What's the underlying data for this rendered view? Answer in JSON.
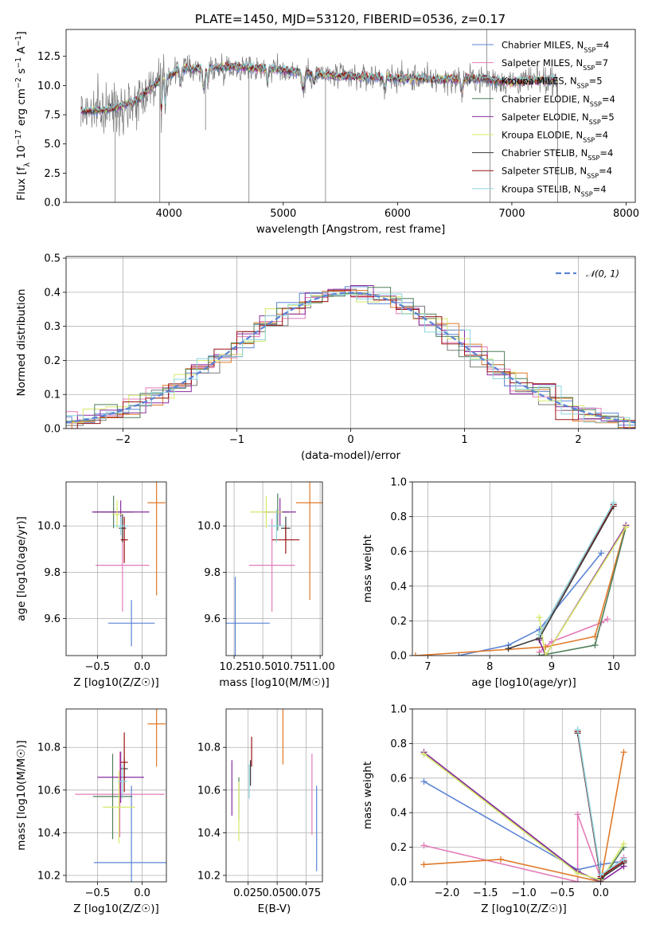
{
  "figure": {
    "title": "PLATE=1450, MJD=53120, FIBERID=0536, z=0.17"
  },
  "series_colors": [
    "#5b84d6",
    "#e47bb8",
    "#7a7a7a",
    "#e07a2a",
    "#8a2aa0",
    "#d6e86a",
    "#4f7f5a",
    "#9a1010",
    "#8ed6df"
  ],
  "chart_data": [
    {
      "id": "spectrum",
      "type": "line",
      "xlabel": "wavelength [Angstrom, rest frame]",
      "ylabel": "Flux [f_λ 10^-17 erg cm^-2 s^-1 A^-1]",
      "xlim": [
        3100,
        8080
      ],
      "ylim": [
        0,
        14.8
      ],
      "xticks": [
        4000,
        5000,
        6000,
        7000,
        8000
      ],
      "yticks": [
        0.0,
        2.5,
        5.0,
        7.5,
        10.0,
        12.5
      ],
      "grid": false,
      "legend": "right",
      "series": [
        {
          "name": "Chabrier MILES, N_SSP=4",
          "legend": "Chabrier MILES, N",
          "sub": "SSP",
          "tail": "=4",
          "color": "#5b84d6"
        },
        {
          "name": "Salpeter MILES, N_SSP=7",
          "legend": "Salpeter MILES, N",
          "sub": "SSP",
          "tail": "=7",
          "color": "#e47bb8"
        },
        {
          "name": "Kroupa MILES, N_SSP=5",
          "legend": "Kroupa MILES, N",
          "sub": "SSP",
          "tail": "=5",
          "color": "#7a7a7a"
        },
        {
          "name": "Chabrier ELODIE, N_SSP=4",
          "legend": "Chabrier ELODIE, N",
          "sub": "SSP",
          "tail": "=4",
          "color": "#4f7f5a"
        },
        {
          "name": "Salpeter ELODIE, N_SSP=5",
          "legend": "Salpeter ELODIE, N",
          "sub": "SSP",
          "tail": "=5",
          "color": "#8a2aa0"
        },
        {
          "name": "Kroupa ELODIE, N_SSP=4",
          "legend": "Kroupa ELODIE, N",
          "sub": "SSP",
          "tail": "=4",
          "color": "#d6e86a"
        },
        {
          "name": "Chabrier STELIB, N_SSP=4",
          "legend": "Chabrier STELIB, N",
          "sub": "SSP",
          "tail": "=4",
          "color": "#3a3a3a"
        },
        {
          "name": "Salpeter STELIB, N_SSP=4",
          "legend": "Salpeter STELIB, N",
          "sub": "SSP",
          "tail": "=4",
          "color": "#9a1010"
        },
        {
          "name": "Kroupa STELIB, N_SSP=4",
          "legend": "Kroupa STELIB, N",
          "sub": "SSP",
          "tail": "=4",
          "color": "#8ed6df"
        }
      ],
      "continuum": [
        [
          3200,
          7.8
        ],
        [
          3450,
          7.9
        ],
        [
          3700,
          8.6
        ],
        [
          3900,
          10.3
        ],
        [
          4100,
          11.4
        ],
        [
          4300,
          11.5
        ],
        [
          4600,
          11.6
        ],
        [
          4900,
          11.4
        ],
        [
          5200,
          11.1
        ],
        [
          5500,
          10.8
        ],
        [
          5800,
          10.7
        ],
        [
          6100,
          10.6
        ],
        [
          6400,
          10.5
        ],
        [
          6700,
          10.6
        ],
        [
          7000,
          10.3
        ],
        [
          7400,
          10.5
        ]
      ]
    },
    {
      "id": "residuals",
      "type": "line",
      "xlabel": "(data-model)/error",
      "ylabel": "Normed distribution",
      "xlim": [
        -2.5,
        2.5
      ],
      "ylim": [
        0,
        0.505
      ],
      "xticks": [
        -2,
        -1,
        0,
        1,
        2
      ],
      "yticks": [
        0.0,
        0.1,
        0.2,
        0.3,
        0.4,
        0.5
      ],
      "grid": true,
      "legend": "top-right",
      "reference": {
        "name": "N(0,1)",
        "legend": "𝒩(0, 1)",
        "color": "#5b84d6",
        "style": "dashed"
      }
    },
    {
      "id": "age_vs_z",
      "type": "scatter",
      "xlabel": "Z [log10(Z/Z☉)]",
      "ylabel": "age [log10(age/yr)]",
      "xlim": [
        -0.85,
        0.27
      ],
      "ylim": [
        9.44,
        10.19
      ],
      "xticks": [
        -0.5,
        0.0
      ],
      "yticks": [
        9.6,
        9.8,
        10.0
      ],
      "grid": true,
      "points": [
        {
          "x": -0.12,
          "y": 9.58,
          "xerr": 0.26,
          "yerr": 0.1,
          "color": "#5b84d6"
        },
        {
          "x": -0.22,
          "y": 9.83,
          "xerr": 0.3,
          "yerr": 0.2,
          "color": "#e47bb8"
        },
        {
          "x": 0.16,
          "y": 10.1,
          "xerr": 0.1,
          "yerr": 0.4,
          "color": "#e07a2a"
        },
        {
          "x": -0.32,
          "y": 10.06,
          "xerr": 0.22,
          "yerr": 0.07,
          "color": "#4f7f5a"
        },
        {
          "x": -0.24,
          "y": 10.06,
          "xerr": 0.32,
          "yerr": 0.05,
          "color": "#8a2aa0"
        },
        {
          "x": -0.28,
          "y": 10.05,
          "xerr": 0.06,
          "yerr": 0.06,
          "color": "#d6e86a"
        },
        {
          "x": -0.22,
          "y": 9.99,
          "xerr": 0.04,
          "yerr": 0.06,
          "color": "#3a3a3a"
        },
        {
          "x": -0.2,
          "y": 9.94,
          "xerr": 0.04,
          "yerr": 0.1,
          "color": "#9a1010"
        },
        {
          "x": -0.24,
          "y": 10.0,
          "xerr": 0.08,
          "yerr": 0.04,
          "color": "#8ed6df"
        }
      ]
    },
    {
      "id": "age_vs_mass",
      "type": "scatter",
      "xlabel": "mass [log10(M/M☉)]",
      "ylabel": "",
      "xlim": [
        10.18,
        11.02
      ],
      "ylim": [
        9.44,
        10.19
      ],
      "xticks": [
        10.25,
        10.5,
        10.75,
        11.0
      ],
      "yticks": [
        9.6,
        9.8,
        10.0
      ],
      "grid": true,
      "points": [
        {
          "x": 10.26,
          "y": 9.58,
          "xerr": 0.3,
          "yerr": 0.2,
          "color": "#5b84d6"
        },
        {
          "x": 10.58,
          "y": 9.83,
          "xerr": 0.2,
          "yerr": 0.2,
          "color": "#e47bb8"
        },
        {
          "x": 10.91,
          "y": 10.1,
          "xerr": 0.12,
          "yerr": 0.42,
          "color": "#e07a2a"
        },
        {
          "x": 10.63,
          "y": 10.06,
          "xerr": 0.1,
          "yerr": 0.08,
          "color": "#4f7f5a"
        },
        {
          "x": 10.65,
          "y": 10.06,
          "xerr": 0.14,
          "yerr": 0.06,
          "color": "#8a2aa0"
        },
        {
          "x": 10.53,
          "y": 10.06,
          "xerr": 0.14,
          "yerr": 0.07,
          "color": "#d6e86a"
        },
        {
          "x": 10.7,
          "y": 9.99,
          "xerr": 0.04,
          "yerr": 0.05,
          "color": "#3a3a3a"
        },
        {
          "x": 10.7,
          "y": 9.94,
          "xerr": 0.12,
          "yerr": 0.06,
          "color": "#9a1010"
        },
        {
          "x": 10.62,
          "y": 10.0,
          "xerr": 0.07,
          "yerr": 0.07,
          "color": "#8ed6df"
        }
      ]
    },
    {
      "id": "weight_vs_age",
      "type": "line",
      "xlabel": "age [log10(age/yr)]",
      "ylabel": "mass weight",
      "xlim": [
        6.75,
        10.35
      ],
      "ylim": [
        0,
        1.0
      ],
      "xticks": [
        7,
        8,
        9,
        10
      ],
      "yticks": [
        0.0,
        0.2,
        0.4,
        0.6,
        0.8,
        1.0
      ],
      "grid": true,
      "series": [
        {
          "color": "#5b84d6",
          "points": [
            [
              7.5,
              0.0
            ],
            [
              8.3,
              0.06
            ],
            [
              8.8,
              0.15
            ],
            [
              9.8,
              0.59
            ]
          ]
        },
        {
          "color": "#e47bb8",
          "points": [
            [
              8.8,
              0.02
            ],
            [
              9.0,
              0.08
            ],
            [
              9.8,
              0.19
            ],
            [
              9.9,
              0.21
            ]
          ]
        },
        {
          "color": "#e07a2a",
          "points": [
            [
              6.8,
              0.0
            ],
            [
              8.9,
              0.05
            ],
            [
              9.7,
              0.11
            ],
            [
              10.2,
              0.75
            ]
          ]
        },
        {
          "color": "#4f7f5a",
          "points": [
            [
              8.8,
              0.0
            ],
            [
              9.7,
              0.06
            ],
            [
              10.2,
              0.74
            ]
          ]
        },
        {
          "color": "#8a2aa0",
          "points": [
            [
              8.8,
              0.09
            ],
            [
              8.9,
              0.0
            ],
            [
              10.2,
              0.75
            ]
          ]
        },
        {
          "color": "#d6e86a",
          "points": [
            [
              8.8,
              0.22
            ],
            [
              8.9,
              0.0
            ],
            [
              10.2,
              0.74
            ]
          ]
        },
        {
          "color": "#3a3a3a",
          "points": [
            [
              8.3,
              0.04
            ],
            [
              8.8,
              0.1
            ],
            [
              10.0,
              0.86
            ]
          ]
        },
        {
          "color": "#9a1010",
          "points": [
            [
              8.8,
              0.12
            ],
            [
              10.0,
              0.87
            ]
          ]
        },
        {
          "color": "#8ed6df",
          "points": [
            [
              8.8,
              0.12
            ],
            [
              10.0,
              0.88
            ]
          ]
        }
      ]
    },
    {
      "id": "mass_vs_z",
      "type": "scatter",
      "xlabel": "Z [log10(Z/Z☉)]",
      "ylabel": "mass [log10(M/M☉)]",
      "xlim": [
        -0.85,
        0.27
      ],
      "ylim": [
        10.17,
        10.98
      ],
      "xticks": [
        -0.5,
        0.0
      ],
      "yticks": [
        10.2,
        10.4,
        10.6,
        10.8
      ],
      "grid": true,
      "points": [
        {
          "x": -0.12,
          "y": 10.26,
          "xerr": 0.42,
          "yerr": 0.36,
          "color": "#5b84d6"
        },
        {
          "x": -0.25,
          "y": 10.58,
          "xerr": 0.5,
          "yerr": 0.2,
          "color": "#e47bb8"
        },
        {
          "x": 0.16,
          "y": 10.91,
          "xerr": 0.1,
          "yerr": 0.2,
          "color": "#e07a2a"
        },
        {
          "x": -0.33,
          "y": 10.57,
          "xerr": 0.22,
          "yerr": 0.2,
          "color": "#4f7f5a"
        },
        {
          "x": -0.24,
          "y": 10.66,
          "xerr": 0.26,
          "yerr": 0.12,
          "color": "#8a2aa0"
        },
        {
          "x": -0.26,
          "y": 10.52,
          "xerr": 0.18,
          "yerr": 0.17,
          "color": "#d6e86a"
        },
        {
          "x": -0.2,
          "y": 10.7,
          "xerr": 0.04,
          "yerr": 0.05,
          "color": "#3a3a3a"
        },
        {
          "x": -0.2,
          "y": 10.73,
          "xerr": 0.04,
          "yerr": 0.14,
          "color": "#9a1010"
        },
        {
          "x": -0.22,
          "y": 10.64,
          "xerr": 0.05,
          "yerr": 0.08,
          "color": "#8ed6df"
        }
      ]
    },
    {
      "id": "mass_vs_ebv",
      "type": "scatter",
      "xlabel": "E(B-V)",
      "ylabel": "",
      "xlim": [
        0.006,
        0.089
      ],
      "ylim": [
        10.17,
        10.98
      ],
      "xticks": [
        0.025,
        0.05,
        0.075
      ],
      "yticks": [
        10.2,
        10.4,
        10.6,
        10.8
      ],
      "grid": true,
      "points": [
        {
          "x": 0.084,
          "y": 10.42,
          "yerr": 0.2,
          "color": "#5b84d6"
        },
        {
          "x": 0.08,
          "y": 10.58,
          "yerr": 0.19,
          "color": "#e47bb8"
        },
        {
          "x": 0.055,
          "y": 10.85,
          "yerr": 0.13,
          "color": "#e07a2a"
        },
        {
          "x": 0.017,
          "y": 10.56,
          "yerr": 0.1,
          "color": "#4f7f5a"
        },
        {
          "x": 0.011,
          "y": 10.61,
          "yerr": 0.13,
          "color": "#8a2aa0"
        },
        {
          "x": 0.017,
          "y": 10.5,
          "yerr": 0.14,
          "color": "#d6e86a"
        },
        {
          "x": 0.027,
          "y": 10.68,
          "yerr": 0.06,
          "color": "#3a3a3a"
        },
        {
          "x": 0.028,
          "y": 10.78,
          "yerr": 0.07,
          "color": "#9a1010"
        },
        {
          "x": 0.026,
          "y": 10.64,
          "yerr": 0.08,
          "color": "#8ed6df"
        }
      ]
    },
    {
      "id": "weight_vs_z",
      "type": "line",
      "xlabel": "Z [log10(Z/Z☉)]",
      "ylabel": "mass weight",
      "xlim": [
        -2.45,
        0.45
      ],
      "ylim": [
        0,
        1.0
      ],
      "xticks": [
        -2.0,
        -1.5,
        -1.0,
        -0.5,
        0.0
      ],
      "yticks": [
        0.0,
        0.2,
        0.4,
        0.6,
        0.8,
        1.0
      ],
      "grid": true,
      "series": [
        {
          "color": "#5b84d6",
          "points": [
            [
              -2.3,
              0.58
            ],
            [
              -0.3,
              0.07
            ],
            [
              0.0,
              0.1
            ],
            [
              0.3,
              0.12
            ]
          ]
        },
        {
          "color": "#e47bb8",
          "points": [
            [
              -2.3,
              0.21
            ],
            [
              -0.3,
              0.0
            ],
            [
              -0.3,
              0.39
            ],
            [
              0.0,
              0.02
            ],
            [
              0.3,
              0.14
            ]
          ]
        },
        {
          "color": "#e07a2a",
          "points": [
            [
              -2.3,
              0.1
            ],
            [
              -1.3,
              0.13
            ],
            [
              0.0,
              0.0
            ],
            [
              0.3,
              0.75
            ]
          ]
        },
        {
          "color": "#4f7f5a",
          "points": [
            [
              -2.3,
              0.74
            ],
            [
              -0.3,
              0.06
            ],
            [
              0.0,
              0.0
            ],
            [
              0.3,
              0.2
            ]
          ]
        },
        {
          "color": "#8a2aa0",
          "points": [
            [
              -2.3,
              0.75
            ],
            [
              -0.3,
              0.06
            ],
            [
              0.0,
              0.0
            ],
            [
              0.3,
              0.09
            ]
          ]
        },
        {
          "color": "#d6e86a",
          "points": [
            [
              -2.3,
              0.74
            ],
            [
              -0.3,
              0.05
            ],
            [
              0.0,
              0.01
            ],
            [
              0.3,
              0.22
            ]
          ]
        },
        {
          "color": "#3a3a3a",
          "points": [
            [
              -0.3,
              0.86
            ],
            [
              0.0,
              0.02
            ],
            [
              0.3,
              0.11
            ]
          ]
        },
        {
          "color": "#9a1010",
          "points": [
            [
              -0.3,
              0.87
            ],
            [
              0.0,
              0.03
            ],
            [
              0.3,
              0.12
            ]
          ]
        },
        {
          "color": "#8ed6df",
          "points": [
            [
              -0.3,
              0.88
            ],
            [
              0.0,
              0.04
            ],
            [
              0.3,
              0.13
            ]
          ]
        }
      ]
    }
  ]
}
